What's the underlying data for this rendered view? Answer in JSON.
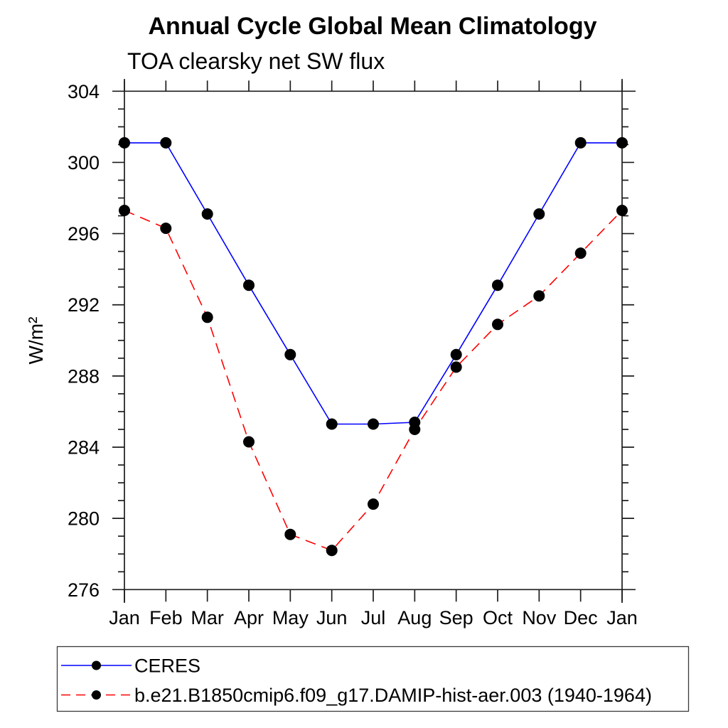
{
  "chart_data": {
    "type": "line",
    "title": "Annual Cycle Global Mean Climatology",
    "subtitle": "TOA clearsky net SW flux",
    "ylabel": "W/m²",
    "xlabel": "",
    "categories": [
      "Jan",
      "Feb",
      "Mar",
      "Apr",
      "May",
      "Jun",
      "Jul",
      "Aug",
      "Sep",
      "Oct",
      "Nov",
      "Dec",
      "Jan"
    ],
    "ylim": [
      276,
      304
    ],
    "yticks": [
      276,
      280,
      284,
      288,
      292,
      296,
      300,
      304
    ],
    "ytick_minor_step": 1,
    "grid": false,
    "legend_position": "bottom-left-box",
    "axis_color": "#1c1c1c",
    "marker_color": "#000000",
    "series": [
      {
        "name": "CERES",
        "color": "#0000ff",
        "style": "solid",
        "marker": "circle",
        "values": [
          301.1,
          301.1,
          297.1,
          293.1,
          289.2,
          285.3,
          285.3,
          285.4,
          289.2,
          293.1,
          297.1,
          301.1,
          301.1
        ]
      },
      {
        "name": "b.e21.B1850cmip6.f09_g17.DAMIP-hist-aer.003 (1940-1964)",
        "color": "#ff0000",
        "style": "dashed",
        "marker": "circle",
        "values": [
          297.3,
          296.3,
          291.3,
          284.3,
          279.1,
          278.2,
          280.8,
          285.0,
          288.5,
          290.9,
          292.5,
          294.9,
          297.3
        ]
      }
    ]
  }
}
